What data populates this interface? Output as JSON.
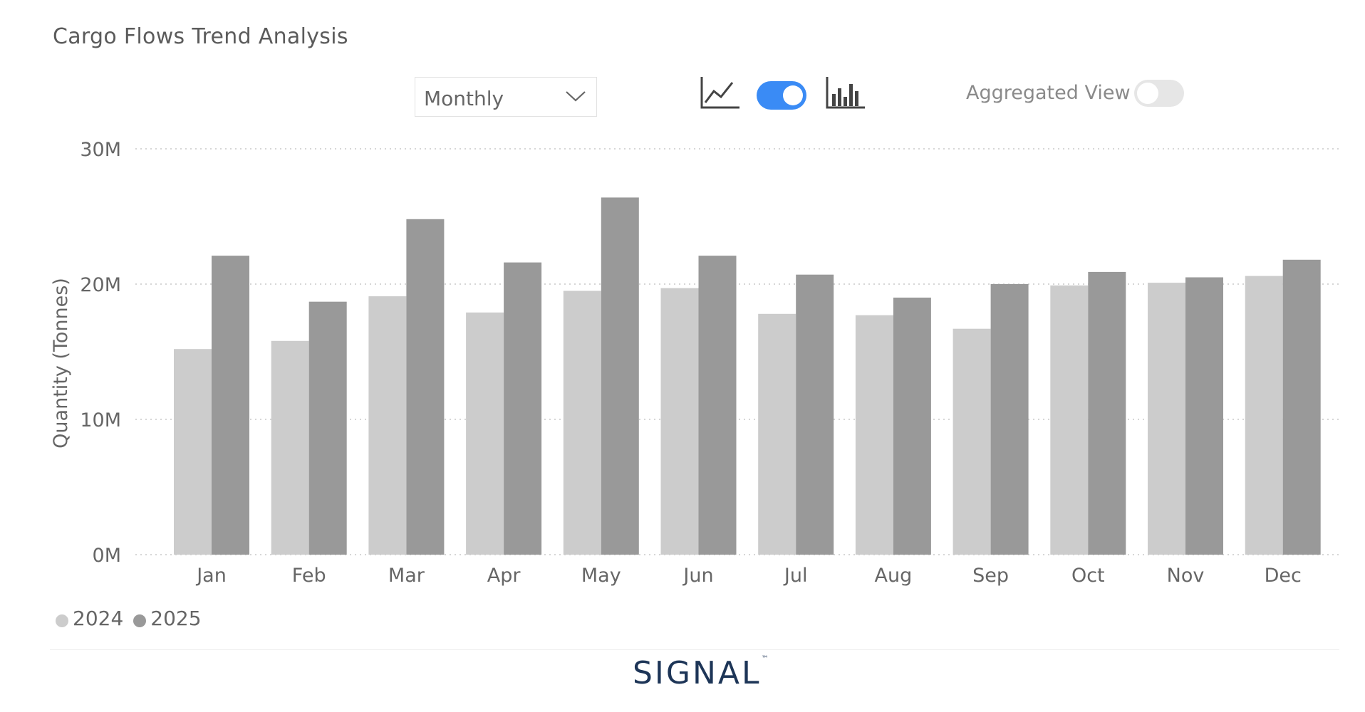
{
  "header": {
    "title": "Cargo Flows Trend Analysis"
  },
  "controls": {
    "period": {
      "selected": "Monthly"
    },
    "chart_type_toggle": {
      "on": true,
      "left_icon": "line-chart-icon",
      "right_icon": "bar-chart-icon"
    },
    "aggregated_view": {
      "label": "Aggregated View",
      "on": false
    }
  },
  "colors": {
    "series_2024": "#cccccc",
    "series_2025": "#999999",
    "toggle_on": "#3a8bf5",
    "toggle_off": "#e6e6e6"
  },
  "chart_data": {
    "type": "bar",
    "title": "Cargo Flows Trend Analysis",
    "xlabel": "",
    "ylabel": "Quantity (Tonnes)",
    "ylim": [
      0,
      30000000
    ],
    "yticks": [
      "0M",
      "10M",
      "20M",
      "30M"
    ],
    "grid": true,
    "legend": "bottom-left",
    "categories": [
      "Jan",
      "Feb",
      "Mar",
      "Apr",
      "May",
      "Jun",
      "Jul",
      "Aug",
      "Sep",
      "Oct",
      "Nov",
      "Dec"
    ],
    "series": [
      {
        "name": "2024",
        "values": [
          15200000,
          15800000,
          19100000,
          17900000,
          19500000,
          19700000,
          17800000,
          17700000,
          16700000,
          19900000,
          20100000,
          20600000
        ]
      },
      {
        "name": "2025",
        "values": [
          22100000,
          18700000,
          24800000,
          21600000,
          26400000,
          22100000,
          20700000,
          19000000,
          20000000,
          20900000,
          20500000,
          21800000
        ]
      }
    ]
  },
  "footer": {
    "logo_text": "SIGNAL",
    "logo_mark": "™"
  }
}
